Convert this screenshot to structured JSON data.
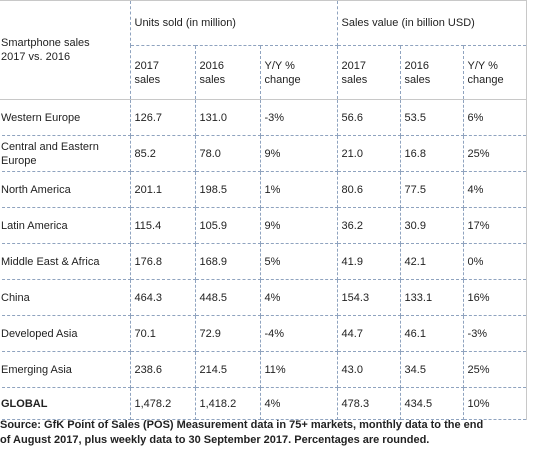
{
  "table": {
    "corner_line1": "Smartphone sales",
    "corner_line2": "2017 vs. 2016",
    "group_units": "Units sold (in million)",
    "group_value": "Sales value (in billion USD)",
    "sub_headers": [
      [
        "2017",
        "sales"
      ],
      [
        "2016",
        "sales"
      ],
      [
        "Y/Y %",
        "change"
      ],
      [
        "2017",
        "sales"
      ],
      [
        "2016",
        "sales"
      ],
      [
        "Y/Y %",
        "change"
      ]
    ],
    "rows": [
      {
        "region": [
          "Western Europe"
        ],
        "values": [
          "126.7",
          "131.0",
          "-3%",
          "56.6",
          "53.5",
          "6%"
        ]
      },
      {
        "region": [
          "Central and Eastern",
          "Europe"
        ],
        "values": [
          "85.2",
          "78.0",
          "9%",
          "21.0",
          "16.8",
          "25%"
        ]
      },
      {
        "region": [
          "North America"
        ],
        "values": [
          "201.1",
          "198.5",
          "1%",
          "80.6",
          "77.5",
          "4%"
        ]
      },
      {
        "region": [
          "Latin America"
        ],
        "values": [
          "115.4",
          "105.9",
          "9%",
          "36.2",
          "30.9",
          "17%"
        ]
      },
      {
        "region": [
          "Middle East & Africa"
        ],
        "values": [
          "176.8",
          "168.9",
          "5%",
          "41.9",
          "42.1",
          "0%"
        ]
      },
      {
        "region": [
          "China"
        ],
        "values": [
          "464.3",
          "448.5",
          "4%",
          "154.3",
          "133.1",
          "16%"
        ]
      },
      {
        "region": [
          "Developed Asia"
        ],
        "values": [
          "70.1",
          "72.9",
          "-4%",
          "44.7",
          "46.1",
          "-3%"
        ]
      },
      {
        "region": [
          "Emerging Asia"
        ],
        "values": [
          "238.6",
          "214.5",
          "11%",
          "43.0",
          "34.5",
          "25%"
        ]
      }
    ],
    "global": {
      "region": "GLOBAL",
      "values": [
        "1,478.2",
        "1,418.2",
        "4%",
        "478.3",
        "434.5",
        "10%"
      ]
    }
  },
  "source": {
    "line1": "Source: GfK Point of Sales (POS) Measurement data in 75+ markets, monthly data to the end",
    "line2": "of August 2017, plus weekly data to 30 September 2017. Percentages are rounded."
  }
}
